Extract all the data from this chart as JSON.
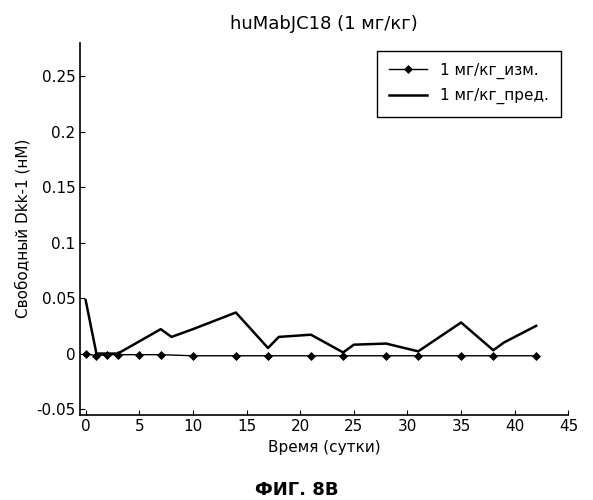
{
  "title": "huMabJC18 (1 мг/кг)",
  "xlabel": "Время (сутки)",
  "ylabel": "Свободный Dkk-1 (нМ)",
  "caption": "ФИГ. 8В",
  "xlim": [
    -0.5,
    45
  ],
  "ylim": [
    -0.055,
    0.28
  ],
  "yticks": [
    -0.05,
    0,
    0.05,
    0.1,
    0.15,
    0.2,
    0.25
  ],
  "xticks": [
    0,
    5,
    10,
    15,
    20,
    25,
    30,
    35,
    40,
    45
  ],
  "measured_x": [
    0,
    1,
    2,
    3,
    5,
    7,
    10,
    14,
    17,
    21,
    24,
    28,
    31,
    35,
    38,
    42
  ],
  "measured_y": [
    0.0,
    -0.002,
    -0.001,
    -0.001,
    -0.001,
    -0.001,
    -0.002,
    -0.002,
    -0.002,
    -0.002,
    -0.002,
    -0.002,
    -0.002,
    -0.002,
    -0.002,
    -0.002
  ],
  "predicted_x": [
    0,
    1,
    3,
    7,
    8,
    10,
    14,
    17,
    18,
    21,
    24,
    25,
    28,
    31,
    35,
    38,
    39,
    42
  ],
  "predicted_y": [
    0.048,
    0.0,
    0.0,
    0.022,
    0.015,
    0.022,
    0.037,
    0.005,
    0.015,
    0.017,
    0.001,
    0.008,
    0.009,
    0.002,
    0.028,
    0.003,
    0.01,
    0.025
  ],
  "legend_measured": "1 мг/кг_изм.",
  "legend_predicted": "1 мг/кг_пред.",
  "line_color": "#000000",
  "marker_color": "#000000",
  "background_color": "#ffffff",
  "title_fontsize": 13,
  "axis_label_fontsize": 11,
  "tick_fontsize": 11,
  "legend_fontsize": 11,
  "caption_fontsize": 13
}
